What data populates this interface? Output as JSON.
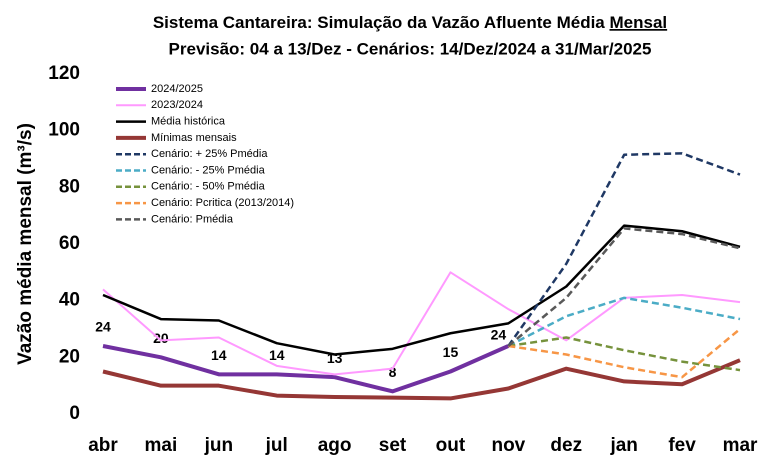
{
  "chart_data": {
    "type": "line",
    "title": "Sistema Cantareira: Simulação da Vazão Afluente Média",
    "title_emphasis": "Mensal",
    "subtitle": "Previsão: 04 a 13/Dez - Cenários: 14/Dez/2024 a 31/Mar/2025",
    "y_label": "Vazão média mensal (m³/s)",
    "categories": [
      "abr",
      "mai",
      "jun",
      "jul",
      "ago",
      "set",
      "out",
      "nov",
      "dez",
      "jan",
      "fev",
      "mar"
    ],
    "ylim": [
      0,
      120
    ],
    "yticks": [
      0,
      20,
      40,
      60,
      80,
      100,
      120
    ],
    "grid": false,
    "legend": "top-left",
    "series": [
      {
        "name": "2024/2025",
        "color": "#7030a0",
        "dashed": false,
        "width": 4,
        "show_labels": true,
        "values": [
          24,
          20,
          14,
          14,
          13,
          8,
          15,
          24,
          null,
          null,
          null,
          null
        ]
      },
      {
        "name": "2023/2024",
        "color": "#ff99ff",
        "dashed": false,
        "width": 2,
        "values": [
          44,
          26,
          27,
          17,
          14,
          16,
          50,
          37,
          26,
          41,
          42,
          39.5
        ]
      },
      {
        "name": "Média histórica",
        "color": "#000000",
        "dashed": false,
        "width": 2.5,
        "values": [
          42,
          33.5,
          33,
          25,
          21,
          23,
          28.5,
          32,
          45,
          66.5,
          64.5,
          59
        ]
      },
      {
        "name": "Mínimas mensais",
        "color": "#953735",
        "dashed": false,
        "width": 4,
        "values": [
          15,
          10,
          10,
          6.5,
          6,
          5.8,
          5.5,
          9,
          16,
          11.5,
          10.5,
          19
        ]
      },
      {
        "name": "Cenário: + 25% Pmédia",
        "color": "#1f3864",
        "dashed": true,
        "width": 2.5,
        "values": [
          null,
          null,
          null,
          null,
          null,
          null,
          null,
          24,
          53,
          91.5,
          92,
          84.5
        ]
      },
      {
        "name": "Cenário: - 25% Pmédia",
        "color": "#4bacc6",
        "dashed": true,
        "width": 2.5,
        "values": [
          null,
          null,
          null,
          null,
          null,
          null,
          null,
          24,
          34.5,
          41,
          37.5,
          33.5
        ]
      },
      {
        "name": "Cenário: - 50% Pmédia",
        "color": "#76923c",
        "dashed": true,
        "width": 2.5,
        "values": [
          null,
          null,
          null,
          null,
          null,
          null,
          null,
          24,
          27,
          22.5,
          18.5,
          15.5
        ]
      },
      {
        "name": "Cenário: Pcritica (2013/2014)",
        "color": "#f79646",
        "dashed": true,
        "width": 2.5,
        "values": [
          null,
          null,
          null,
          null,
          null,
          null,
          null,
          24,
          21,
          16.5,
          13,
          30
        ]
      },
      {
        "name": "Cenário: Pmédia",
        "color": "#595959",
        "dashed": true,
        "width": 2.5,
        "values": [
          null,
          null,
          null,
          null,
          null,
          null,
          null,
          24,
          41,
          65.5,
          63.5,
          58.5
        ]
      }
    ]
  }
}
